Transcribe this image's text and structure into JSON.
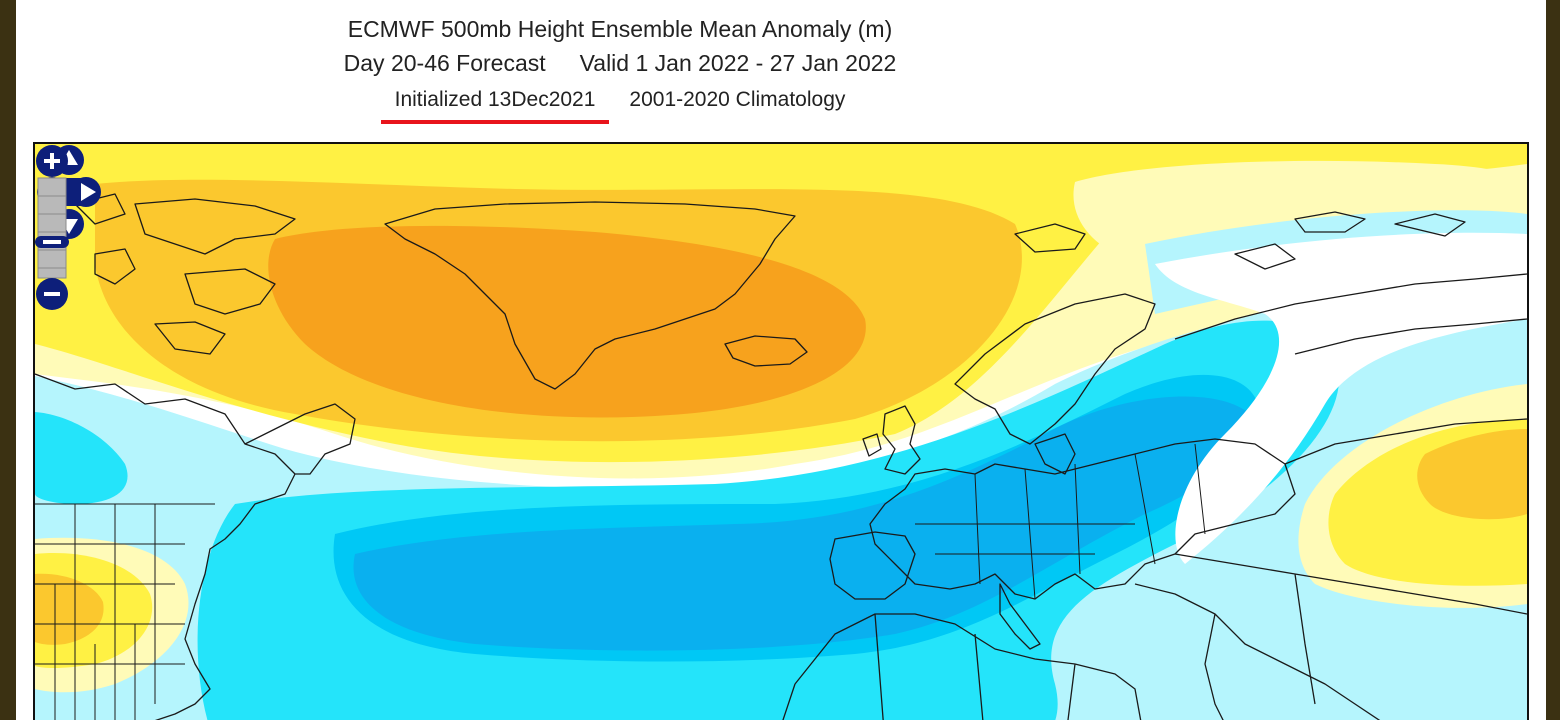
{
  "header": {
    "title": "ECMWF 500mb Height Ensemble Mean Anomaly (m)",
    "forecast": "Day 20-46 Forecast",
    "valid": "Valid 1 Jan 2022 - 27 Jan 2022",
    "initialized": "Initialized 13Dec2021",
    "climatology": "2001-2020 Climatology"
  },
  "map": {
    "colors": {
      "positive_strong": "#f7a21d",
      "positive_mid": "#fbc82e",
      "positive_weak": "#fff144",
      "positive_faint": "#fffbb8",
      "negative_faint": "#b5f5fd",
      "negative_weak": "#24e4fa",
      "negative_mid": "#00c8f5",
      "negative_strong": "#0ab0ef",
      "coastline": "#1a1a1a",
      "highlight_underline": "#e8141c"
    },
    "controls": {
      "pan_icons": [
        "pan-up-icon",
        "pan-left-icon",
        "pan-right-icon",
        "pan-down-icon"
      ],
      "zoom_icons": [
        "zoom-in-icon",
        "zoom-slider-icon",
        "zoom-out-icon"
      ]
    }
  }
}
